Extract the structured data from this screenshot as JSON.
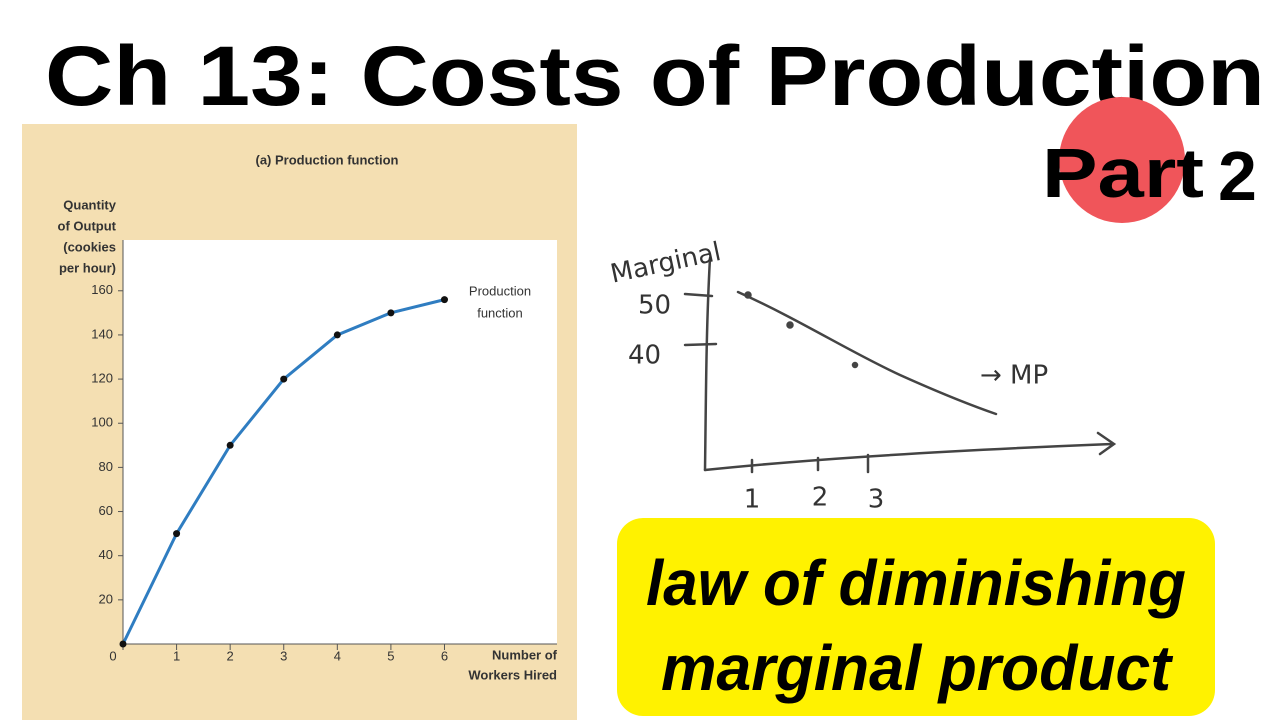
{
  "header": {
    "title": "Ch 13: Costs of Production",
    "part": "Part",
    "part_number": "2"
  },
  "chart_data": {
    "type": "line",
    "title": "(a) Production function",
    "y_label": [
      "Quantity",
      "of Output",
      "(cookies",
      "per hour)"
    ],
    "x_label": [
      "Number of",
      "Workers Hired"
    ],
    "annotation": [
      "Production",
      "function"
    ],
    "x": [
      0,
      1,
      2,
      3,
      4,
      5,
      6
    ],
    "values": [
      0,
      50,
      90,
      120,
      140,
      150,
      156
    ],
    "color": "#2f7dc1",
    "marker_color": "#111111",
    "xlim": [
      0,
      8.1
    ],
    "ylim": [
      0,
      183
    ],
    "xticks": [
      0,
      1,
      2,
      3,
      4,
      5,
      6
    ],
    "yticks": [
      20,
      40,
      60,
      80,
      100,
      120,
      140,
      160
    ]
  },
  "sketch": {
    "y_label": "Marginal",
    "y_ticks": [
      "50",
      "40"
    ],
    "series_label": "→ MP",
    "x_ticks": [
      "1",
      "2",
      "3"
    ]
  },
  "banner": {
    "lines": [
      "law of diminishing",
      "marginal product"
    ]
  }
}
